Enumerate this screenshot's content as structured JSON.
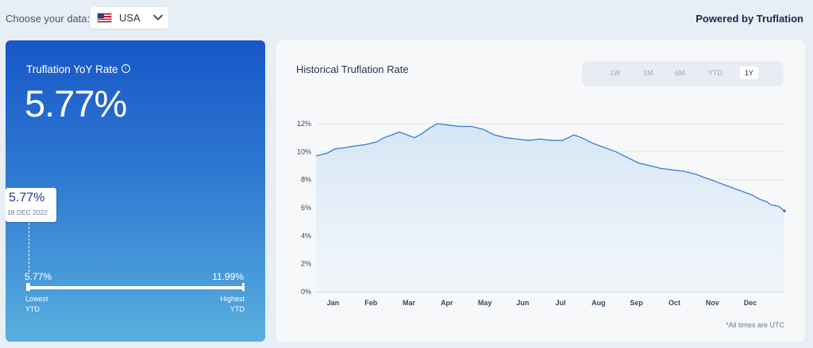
{
  "header": {
    "choose_label": "Choose your data:",
    "country": "USA",
    "powered_by": "Powered by Truflation"
  },
  "summary": {
    "title": "Truflation YoY Rate",
    "value": "5.77%",
    "tooltip_value": "5.77%",
    "tooltip_date": "18 DEC 2022",
    "range_min": "5.77%",
    "range_max": "11.99%",
    "range_position": 0.0,
    "lowest_label_1": "Lowest",
    "lowest_label_2": "YTD",
    "highest_label_1": "Highest",
    "highest_label_2": "YTD"
  },
  "chart_panel": {
    "title": "Historical Truflation Rate",
    "tabs": [
      "1W",
      "1M",
      "6M",
      "YTD",
      "1Y"
    ],
    "active_tab": "1Y",
    "footnote": "*All times are UTC"
  },
  "chart_data": {
    "type": "area",
    "ylim": [
      0,
      12
    ],
    "yticks": [
      "0%",
      "2%",
      "4%",
      "6%",
      "8%",
      "10%",
      "12%"
    ],
    "ytick_values": [
      0,
      2,
      4,
      6,
      8,
      10,
      12
    ],
    "month_labels": [
      "Jan",
      "Feb",
      "Mar",
      "Apr",
      "May",
      "Jun",
      "Jul",
      "Aug",
      "Sep",
      "Oct",
      "Nov",
      "Dec"
    ],
    "x_start": 0,
    "x_end": 12,
    "series": [
      {
        "color": "#3a7bd5",
        "points": [
          [
            0.0,
            9.7
          ],
          [
            0.3,
            9.9
          ],
          [
            0.5,
            10.2
          ],
          [
            0.8,
            10.3
          ],
          [
            1.0,
            10.4
          ],
          [
            1.3,
            10.5
          ],
          [
            1.6,
            10.7
          ],
          [
            1.8,
            11.0
          ],
          [
            2.0,
            11.2
          ],
          [
            2.2,
            11.4
          ],
          [
            2.4,
            11.2
          ],
          [
            2.6,
            11.0
          ],
          [
            2.8,
            11.3
          ],
          [
            3.0,
            11.7
          ],
          [
            3.2,
            12.0
          ],
          [
            3.5,
            11.9
          ],
          [
            3.8,
            11.8
          ],
          [
            4.1,
            11.8
          ],
          [
            4.4,
            11.6
          ],
          [
            4.7,
            11.2
          ],
          [
            5.0,
            11.0
          ],
          [
            5.3,
            10.9
          ],
          [
            5.6,
            10.8
          ],
          [
            5.9,
            10.9
          ],
          [
            6.2,
            10.8
          ],
          [
            6.5,
            10.8
          ],
          [
            6.8,
            11.2
          ],
          [
            7.0,
            11.0
          ],
          [
            7.3,
            10.6
          ],
          [
            7.6,
            10.3
          ],
          [
            7.9,
            10.0
          ],
          [
            8.2,
            9.6
          ],
          [
            8.5,
            9.2
          ],
          [
            8.8,
            9.0
          ],
          [
            9.1,
            8.8
          ],
          [
            9.4,
            8.7
          ],
          [
            9.7,
            8.6
          ],
          [
            10.0,
            8.4
          ],
          [
            10.3,
            8.1
          ],
          [
            10.6,
            7.8
          ],
          [
            10.9,
            7.5
          ],
          [
            11.2,
            7.2
          ],
          [
            11.5,
            6.9
          ],
          [
            11.7,
            6.6
          ],
          [
            11.9,
            6.4
          ],
          [
            12.0,
            6.2
          ],
          [
            12.2,
            6.1
          ],
          [
            12.35,
            5.77
          ]
        ]
      }
    ]
  }
}
